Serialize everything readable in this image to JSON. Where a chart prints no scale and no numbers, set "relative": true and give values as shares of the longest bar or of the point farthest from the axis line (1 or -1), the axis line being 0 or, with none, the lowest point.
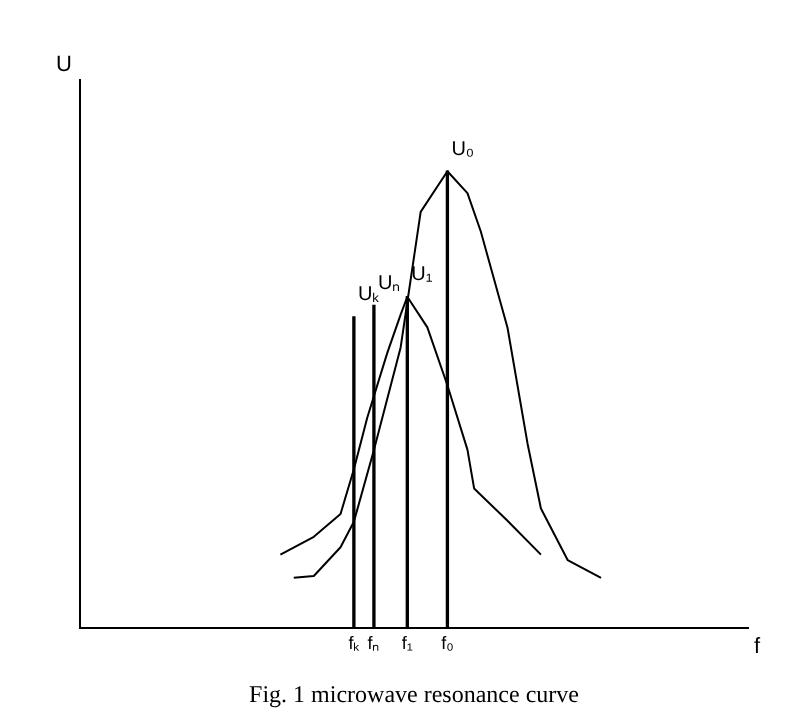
{
  "chart_data": {
    "type": "line",
    "title": "Fig. 1 microwave resonance curve",
    "xlabel": "f",
    "ylabel": "U",
    "relative": true,
    "tick_labels": "x",
    "marker": "none",
    "line_style": "solid",
    "categories": [
      null,
      null,
      null,
      null,
      null,
      null,
      null,
      null,
      null,
      null,
      null,
      null,
      null,
      null,
      null,
      null,
      null,
      null,
      null,
      null,
      null,
      null,
      null,
      null,
      null,
      null,
      null,
      null,
      null,
      null,
      null,
      null,
      null,
      null,
      null,
      null,
      null,
      null,
      null,
      null,
      null,
      "fₖ",
      null,
      null,
      "fₙ",
      null,
      null,
      null,
      null,
      "f₁",
      null,
      null,
      null,
      null,
      null,
      "f₀",
      null,
      null,
      null,
      null,
      null,
      null,
      null,
      null,
      null,
      null,
      null,
      null,
      null,
      null,
      null,
      null,
      null,
      null,
      null,
      null,
      null,
      null,
      null,
      null,
      null,
      null,
      null,
      null,
      null,
      null,
      null,
      null,
      null,
      null,
      null,
      null,
      null,
      null,
      null,
      null,
      null,
      null,
      null,
      null,
      null
    ],
    "series": [
      {
        "color": "#000000",
        "values": [
          null,
          null,
          null,
          null,
          null,
          null,
          null,
          null,
          null,
          null,
          null,
          null,
          null,
          null,
          null,
          null,
          null,
          null,
          null,
          null,
          null,
          null,
          null,
          null,
          null,
          null,
          null,
          null,
          null,
          null,
          null,
          null,
          0.109,
          null,
          null,
          0.113,
          null,
          null,
          null,
          0.176,
          null,
          0.232,
          null,
          null,
          0.389,
          null,
          null,
          null,
          0.614,
          null,
          null,
          0.911,
          null,
          null,
          null,
          1,
          null,
          null,
          0.952,
          null,
          0.868,
          null,
          null,
          null,
          0.657,
          null,
          null,
          0.403,
          null,
          0.261,
          null,
          null,
          null,
          0.148,
          null,
          null,
          null,
          null,
          0.109,
          null,
          null,
          null,
          null,
          null,
          null,
          null,
          null,
          null,
          null,
          null,
          null,
          null,
          null,
          null,
          null,
          null,
          null,
          null,
          null,
          null,
          null
        ]
      },
      {
        "color": "#000000",
        "values": [
          null,
          null,
          null,
          null,
          null,
          null,
          null,
          null,
          null,
          null,
          null,
          null,
          null,
          null,
          null,
          null,
          null,
          null,
          null,
          null,
          null,
          null,
          null,
          null,
          null,
          null,
          null,
          null,
          null,
          null,
          0.16,
          null,
          null,
          null,
          null,
          0.199,
          null,
          null,
          null,
          0.249,
          null,
          0.347,
          null,
          0.46,
          null,
          null,
          0.602,
          null,
          0.686,
          0.725,
          null,
          null,
          0.658,
          null,
          null,
          0.531,
          null,
          null,
          0.39,
          0.305,
          null,
          null,
          null,
          null,
          0.234,
          null,
          null,
          null,
          null,
          0.16,
          null,
          null,
          null,
          null,
          null,
          null,
          null,
          null,
          null,
          null,
          null,
          null,
          null,
          null,
          null,
          null,
          null,
          null,
          null,
          null,
          null,
          null,
          null,
          null,
          null,
          null,
          null,
          null,
          null,
          null,
          null
        ]
      },
      {
        "type": "bar",
        "color": "#000000",
        "values": [
          null,
          null,
          null,
          null,
          null,
          null,
          null,
          null,
          null,
          null,
          null,
          null,
          null,
          null,
          null,
          null,
          null,
          null,
          null,
          null,
          null,
          null,
          null,
          null,
          null,
          null,
          null,
          null,
          null,
          null,
          null,
          null,
          null,
          null,
          null,
          null,
          null,
          null,
          null,
          null,
          null,
          0.681,
          null,
          null,
          0.706,
          null,
          null,
          null,
          null,
          0.725,
          null,
          null,
          null,
          null,
          null,
          1,
          null,
          null,
          null,
          null,
          null,
          null,
          null,
          null,
          null,
          null,
          null,
          null,
          null,
          null,
          null,
          null,
          null,
          null,
          null,
          null,
          null,
          null,
          null,
          null,
          null,
          null,
          null,
          null,
          null,
          null,
          null,
          null,
          null,
          null,
          null,
          null,
          null,
          null,
          null,
          null,
          null,
          null,
          null,
          null,
          null
        ]
      }
    ],
    "annotations": [
      {
        "text": "U₀",
        "x": "f₀",
        "y": 1
      },
      {
        "text": "U₁",
        "x": "f₁",
        "y": 0.725
      },
      {
        "text": "Uₙ",
        "x": "fₙ",
        "y": 0.706
      },
      {
        "text": "Uₖ",
        "x": "fₖ",
        "y": 0.681
      }
    ]
  }
}
